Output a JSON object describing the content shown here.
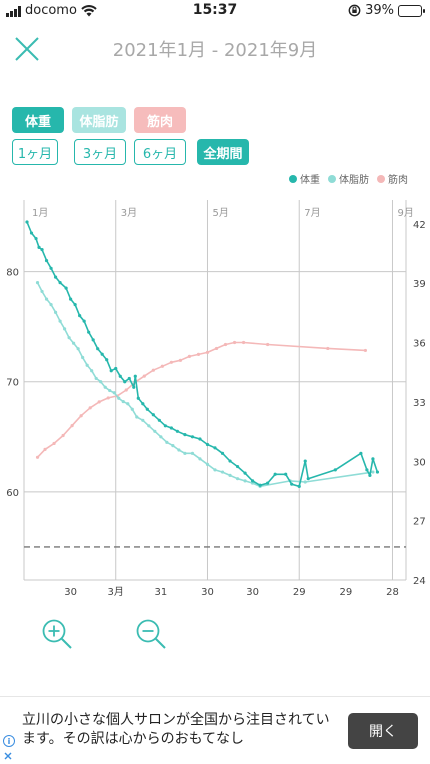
{
  "status_bar": {
    "carrier": "docomo",
    "time": "15:37",
    "battery": "39%",
    "battery_level": 0.39
  },
  "header": {
    "title": "2021年1月 - 2021年9月",
    "close_icon": "close-icon"
  },
  "metric_chips": [
    {
      "label": "体重",
      "style": "filled-teal"
    },
    {
      "label": "体脂肪",
      "style": "filled-light"
    },
    {
      "label": "筋肉",
      "style": "filled-pink"
    }
  ],
  "period_chips": [
    {
      "label": "1ヶ月"
    },
    {
      "label": "3ヶ月"
    },
    {
      "label": "6ヶ月"
    },
    {
      "label": "全期間",
      "selected": true
    }
  ],
  "legend": [
    {
      "label": "体重",
      "color": "#26b7ac"
    },
    {
      "label": "体脂肪",
      "color": "#8fdcd6"
    },
    {
      "label": "筋肉",
      "color": "#f4b8b8"
    }
  ],
  "colors": {
    "weight": "#26b7ac",
    "fat": "#8fdcd6",
    "muscle": "#f4b8b8",
    "grid": "#c8c8c8",
    "target": "#777777"
  },
  "chart_data": {
    "type": "line",
    "title": "",
    "top_month_labels": [
      "1月",
      "3月",
      "5月",
      "7月",
      "9月"
    ],
    "bottom_day_labels": [
      "30",
      "3月",
      "31",
      "30",
      "30",
      "29",
      "29",
      "28",
      "27"
    ],
    "left_axis": {
      "ticks": [
        60,
        70,
        80
      ],
      "ylim": [
        52,
        86.5
      ]
    },
    "right_axis": {
      "ticks": [
        24,
        27,
        30,
        33,
        36,
        39,
        42
      ],
      "ylim": [
        24,
        43.2
      ]
    },
    "target_line": 55,
    "x_range": [
      0,
      250
    ],
    "series": [
      {
        "name": "体重",
        "axis": "left",
        "points": [
          [
            0,
            84.5
          ],
          [
            3,
            83.5
          ],
          [
            6,
            83
          ],
          [
            8,
            82.2
          ],
          [
            10,
            82
          ],
          [
            13,
            81
          ],
          [
            16,
            80.3
          ],
          [
            19,
            79.5
          ],
          [
            22,
            79
          ],
          [
            26,
            78.5
          ],
          [
            29,
            77.5
          ],
          [
            32,
            77
          ],
          [
            35,
            76
          ],
          [
            38,
            75.5
          ],
          [
            41,
            74.5
          ],
          [
            44,
            73.8
          ],
          [
            47,
            73
          ],
          [
            50,
            72.5
          ],
          [
            53,
            72
          ],
          [
            56,
            71
          ],
          [
            59,
            71.2
          ],
          [
            62,
            70.5
          ],
          [
            65,
            70
          ],
          [
            68,
            70.3
          ],
          [
            71,
            69.5
          ],
          [
            72,
            70.5
          ],
          [
            74,
            68.5
          ],
          [
            77,
            68
          ],
          [
            80,
            67.5
          ],
          [
            84,
            67
          ],
          [
            88,
            66.5
          ],
          [
            92,
            66
          ],
          [
            96,
            65.8
          ],
          [
            100,
            65.5
          ],
          [
            105,
            65.2
          ],
          [
            110,
            65
          ],
          [
            115,
            64.8
          ],
          [
            120,
            64.3
          ],
          [
            125,
            64
          ],
          [
            130,
            63.5
          ],
          [
            135,
            62.8
          ],
          [
            140,
            62.3
          ],
          [
            145,
            61.7
          ],
          [
            150,
            61
          ],
          [
            155,
            60.6
          ],
          [
            160,
            60.8
          ],
          [
            165,
            61.6
          ],
          [
            172,
            61.6
          ],
          [
            176,
            60.7
          ],
          [
            181,
            60.5
          ],
          [
            185,
            62.8
          ],
          [
            187,
            61.2
          ],
          [
            205,
            62
          ],
          [
            222,
            63.5
          ],
          [
            226,
            62
          ],
          [
            228,
            61.5
          ],
          [
            230,
            63
          ],
          [
            233,
            61.8
          ]
        ]
      },
      {
        "name": "体脂肪",
        "axis": "left",
        "points": [
          [
            7,
            79
          ],
          [
            10,
            78.2
          ],
          [
            13,
            77.5
          ],
          [
            16,
            77
          ],
          [
            19,
            76.3
          ],
          [
            22,
            75.5
          ],
          [
            25,
            74.8
          ],
          [
            28,
            74
          ],
          [
            31,
            73.5
          ],
          [
            34,
            73
          ],
          [
            37,
            72.2
          ],
          [
            40,
            71.5
          ],
          [
            43,
            71
          ],
          [
            46,
            70.3
          ],
          [
            49,
            70
          ],
          [
            52,
            69.5
          ],
          [
            55,
            69.2
          ],
          [
            58,
            69
          ],
          [
            61,
            68.5
          ],
          [
            64,
            68.2
          ],
          [
            67,
            68
          ],
          [
            70,
            67.5
          ],
          [
            73,
            66.8
          ],
          [
            77,
            66.5
          ],
          [
            81,
            66
          ],
          [
            85,
            65.5
          ],
          [
            89,
            65
          ],
          [
            93,
            64.5
          ],
          [
            97,
            64.2
          ],
          [
            101,
            63.8
          ],
          [
            105,
            63.5
          ],
          [
            110,
            63.5
          ],
          [
            115,
            63
          ],
          [
            120,
            62.5
          ],
          [
            125,
            62
          ],
          [
            130,
            61.8
          ],
          [
            135,
            61.5
          ],
          [
            140,
            61.2
          ],
          [
            145,
            61
          ],
          [
            150,
            60.8
          ],
          [
            155,
            60.5
          ],
          [
            175,
            61
          ],
          [
            185,
            60.9
          ],
          [
            230,
            61.8
          ]
        ]
      },
      {
        "name": "筋肉",
        "axis": "right",
        "points": [
          [
            7,
            30.2
          ],
          [
            12,
            30.6
          ],
          [
            18,
            30.9
          ],
          [
            24,
            31.3
          ],
          [
            30,
            31.8
          ],
          [
            36,
            32.3
          ],
          [
            42,
            32.7
          ],
          [
            48,
            33
          ],
          [
            54,
            33.2
          ],
          [
            60,
            33.3
          ],
          [
            66,
            33.6
          ],
          [
            72,
            34
          ],
          [
            78,
            34.3
          ],
          [
            84,
            34.6
          ],
          [
            90,
            34.8
          ],
          [
            96,
            35
          ],
          [
            102,
            35.1
          ],
          [
            108,
            35.3
          ],
          [
            114,
            35.4
          ],
          [
            120,
            35.5
          ],
          [
            126,
            35.7
          ],
          [
            132,
            35.9
          ],
          [
            138,
            36
          ],
          [
            144,
            36
          ],
          [
            160,
            35.9
          ],
          [
            200,
            35.7
          ],
          [
            225,
            35.6
          ]
        ]
      }
    ]
  },
  "zoom": {
    "zoom_in_icon": "zoom-in-icon",
    "zoom_out_icon": "zoom-out-icon"
  },
  "ad": {
    "text": "立川の小さな個人サロンが全国から注目されています。その訳は心からのおもてなし",
    "button_label": "開く",
    "info_icon": "info-icon",
    "choices_icon": "adchoices-icon"
  }
}
